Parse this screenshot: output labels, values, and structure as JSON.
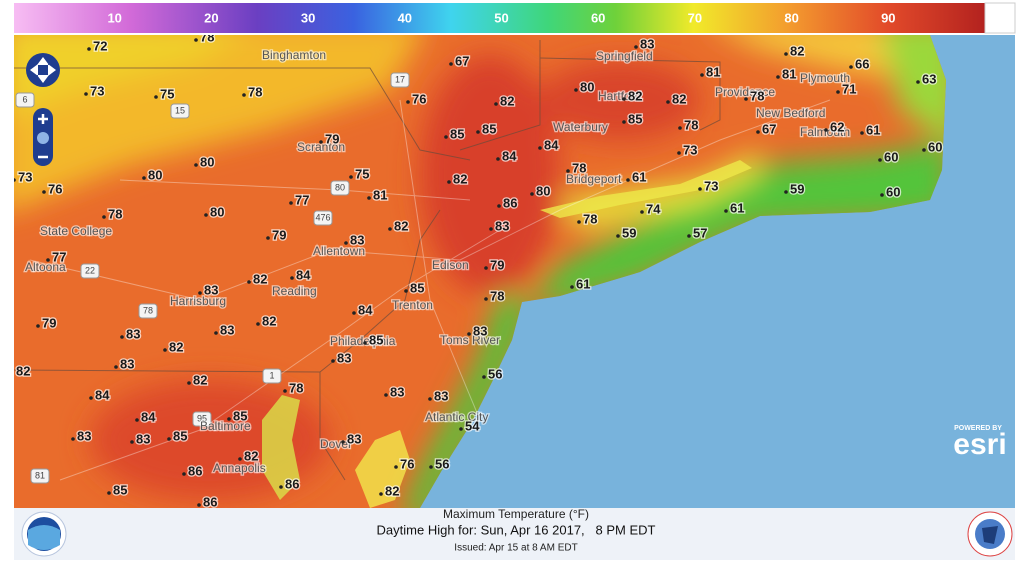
{
  "colorbar": {
    "lim": [
      0,
      100
    ],
    "ticks": [
      10,
      20,
      30,
      40,
      50,
      60,
      70,
      80,
      90
    ]
  },
  "places": [
    "Binghamton",
    "Springfield",
    "Hartford",
    "Providence",
    "Plymouth",
    "New Bedford",
    "Falmouth",
    "Waterbury",
    "Scranton",
    "Bridgeport",
    "State College",
    "Altoona",
    "Allentown",
    "Edison",
    "Reading",
    "Harrisburg",
    "Trenton",
    "Philadelphia",
    "Toms River",
    "Atlantic City",
    "Baltimore",
    "Annapolis",
    "Dover"
  ],
  "roads": [
    "17",
    "15",
    "80",
    "476",
    "22",
    "78",
    "1",
    "95",
    "81",
    "6"
  ],
  "temperatures": [
    72,
    78,
    73,
    75,
    78,
    76,
    82,
    67,
    83,
    82,
    66,
    63,
    81,
    81,
    71,
    80,
    82,
    82,
    78,
    85,
    85,
    85,
    78,
    67,
    62,
    61,
    60,
    60,
    79,
    80,
    80,
    84,
    84,
    73,
    78,
    61,
    73,
    76,
    75,
    82,
    81,
    80,
    73,
    59,
    60,
    78,
    80,
    77,
    86,
    74,
    61,
    78,
    83,
    82,
    79,
    83,
    59,
    57,
    77,
    79,
    82,
    84,
    83,
    85,
    78,
    61,
    84,
    79,
    83,
    83,
    82,
    85,
    83,
    82,
    83,
    83,
    56,
    82,
    82,
    78,
    84,
    83,
    83,
    84,
    85,
    83,
    83,
    85,
    54,
    83,
    82,
    86,
    76,
    56,
    85,
    86,
    82,
    86
  ],
  "footer": {
    "title": "Maximum Temperature (°F)",
    "subtitle": "Daytime High for: Sun, Apr 16 2017,   8 PM EDT",
    "issued": "Issued: Apr 15 at 8 AM EDT"
  },
  "esri": {
    "powered_by": "POWERED BY",
    "logo": "esri"
  }
}
